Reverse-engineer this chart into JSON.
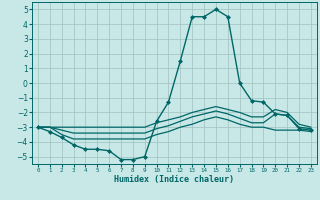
{
  "xlabel": "Humidex (Indice chaleur)",
  "xlim": [
    -0.5,
    23.5
  ],
  "ylim": [
    -5.5,
    5.5
  ],
  "yticks": [
    -5,
    -4,
    -3,
    -2,
    -1,
    0,
    1,
    2,
    3,
    4,
    5
  ],
  "xticks": [
    0,
    1,
    2,
    3,
    4,
    5,
    6,
    7,
    8,
    9,
    10,
    11,
    12,
    13,
    14,
    15,
    16,
    17,
    18,
    19,
    20,
    21,
    22,
    23
  ],
  "bg_color": "#c8e8e8",
  "grid_color": "#a0c0c0",
  "line_color": "#006666",
  "lines": [
    {
      "x": [
        0,
        1,
        2,
        3,
        4,
        5,
        6,
        7,
        8,
        9,
        10,
        11,
        12,
        13,
        14,
        15,
        16,
        17,
        18,
        19,
        20,
        21,
        22,
        23
      ],
      "y": [
        -3.0,
        -3.3,
        -3.7,
        -4.2,
        -4.5,
        -4.5,
        -4.6,
        -5.2,
        -5.2,
        -5.0,
        -2.6,
        -1.3,
        1.5,
        4.5,
        4.5,
        5.0,
        4.5,
        0.0,
        -1.2,
        -1.3,
        -2.1,
        -2.2,
        -3.1,
        -3.2
      ],
      "marker": "D",
      "markersize": 2.0,
      "linewidth": 1.0
    },
    {
      "x": [
        0,
        1,
        2,
        3,
        4,
        5,
        6,
        7,
        8,
        9,
        10,
        11,
        12,
        13,
        14,
        15,
        16,
        17,
        18,
        19,
        20,
        21,
        22,
        23
      ],
      "y": [
        -3.0,
        -3.0,
        -3.5,
        -3.8,
        -3.8,
        -3.8,
        -3.8,
        -3.8,
        -3.8,
        -3.8,
        -3.5,
        -3.3,
        -3.0,
        -2.8,
        -2.5,
        -2.3,
        -2.5,
        -2.8,
        -3.0,
        -3.0,
        -3.2,
        -3.2,
        -3.2,
        -3.3
      ],
      "marker": null,
      "linewidth": 0.9
    },
    {
      "x": [
        0,
        1,
        2,
        3,
        4,
        5,
        6,
        7,
        8,
        9,
        10,
        11,
        12,
        13,
        14,
        15,
        16,
        17,
        18,
        19,
        20,
        21,
        22,
        23
      ],
      "y": [
        -3.0,
        -3.0,
        -3.2,
        -3.4,
        -3.4,
        -3.4,
        -3.4,
        -3.4,
        -3.4,
        -3.4,
        -3.1,
        -2.9,
        -2.6,
        -2.3,
        -2.1,
        -1.9,
        -2.1,
        -2.4,
        -2.7,
        -2.7,
        -2.1,
        -2.2,
        -3.0,
        -3.1
      ],
      "marker": null,
      "linewidth": 0.9
    },
    {
      "x": [
        0,
        1,
        2,
        3,
        4,
        5,
        6,
        7,
        8,
        9,
        10,
        11,
        12,
        13,
        14,
        15,
        16,
        17,
        18,
        19,
        20,
        21,
        22,
        23
      ],
      "y": [
        -3.0,
        -3.0,
        -3.0,
        -3.0,
        -3.0,
        -3.0,
        -3.0,
        -3.0,
        -3.0,
        -3.0,
        -2.7,
        -2.5,
        -2.3,
        -2.0,
        -1.8,
        -1.6,
        -1.8,
        -2.0,
        -2.3,
        -2.3,
        -1.8,
        -2.0,
        -2.8,
        -3.0
      ],
      "marker": null,
      "linewidth": 0.9
    }
  ]
}
